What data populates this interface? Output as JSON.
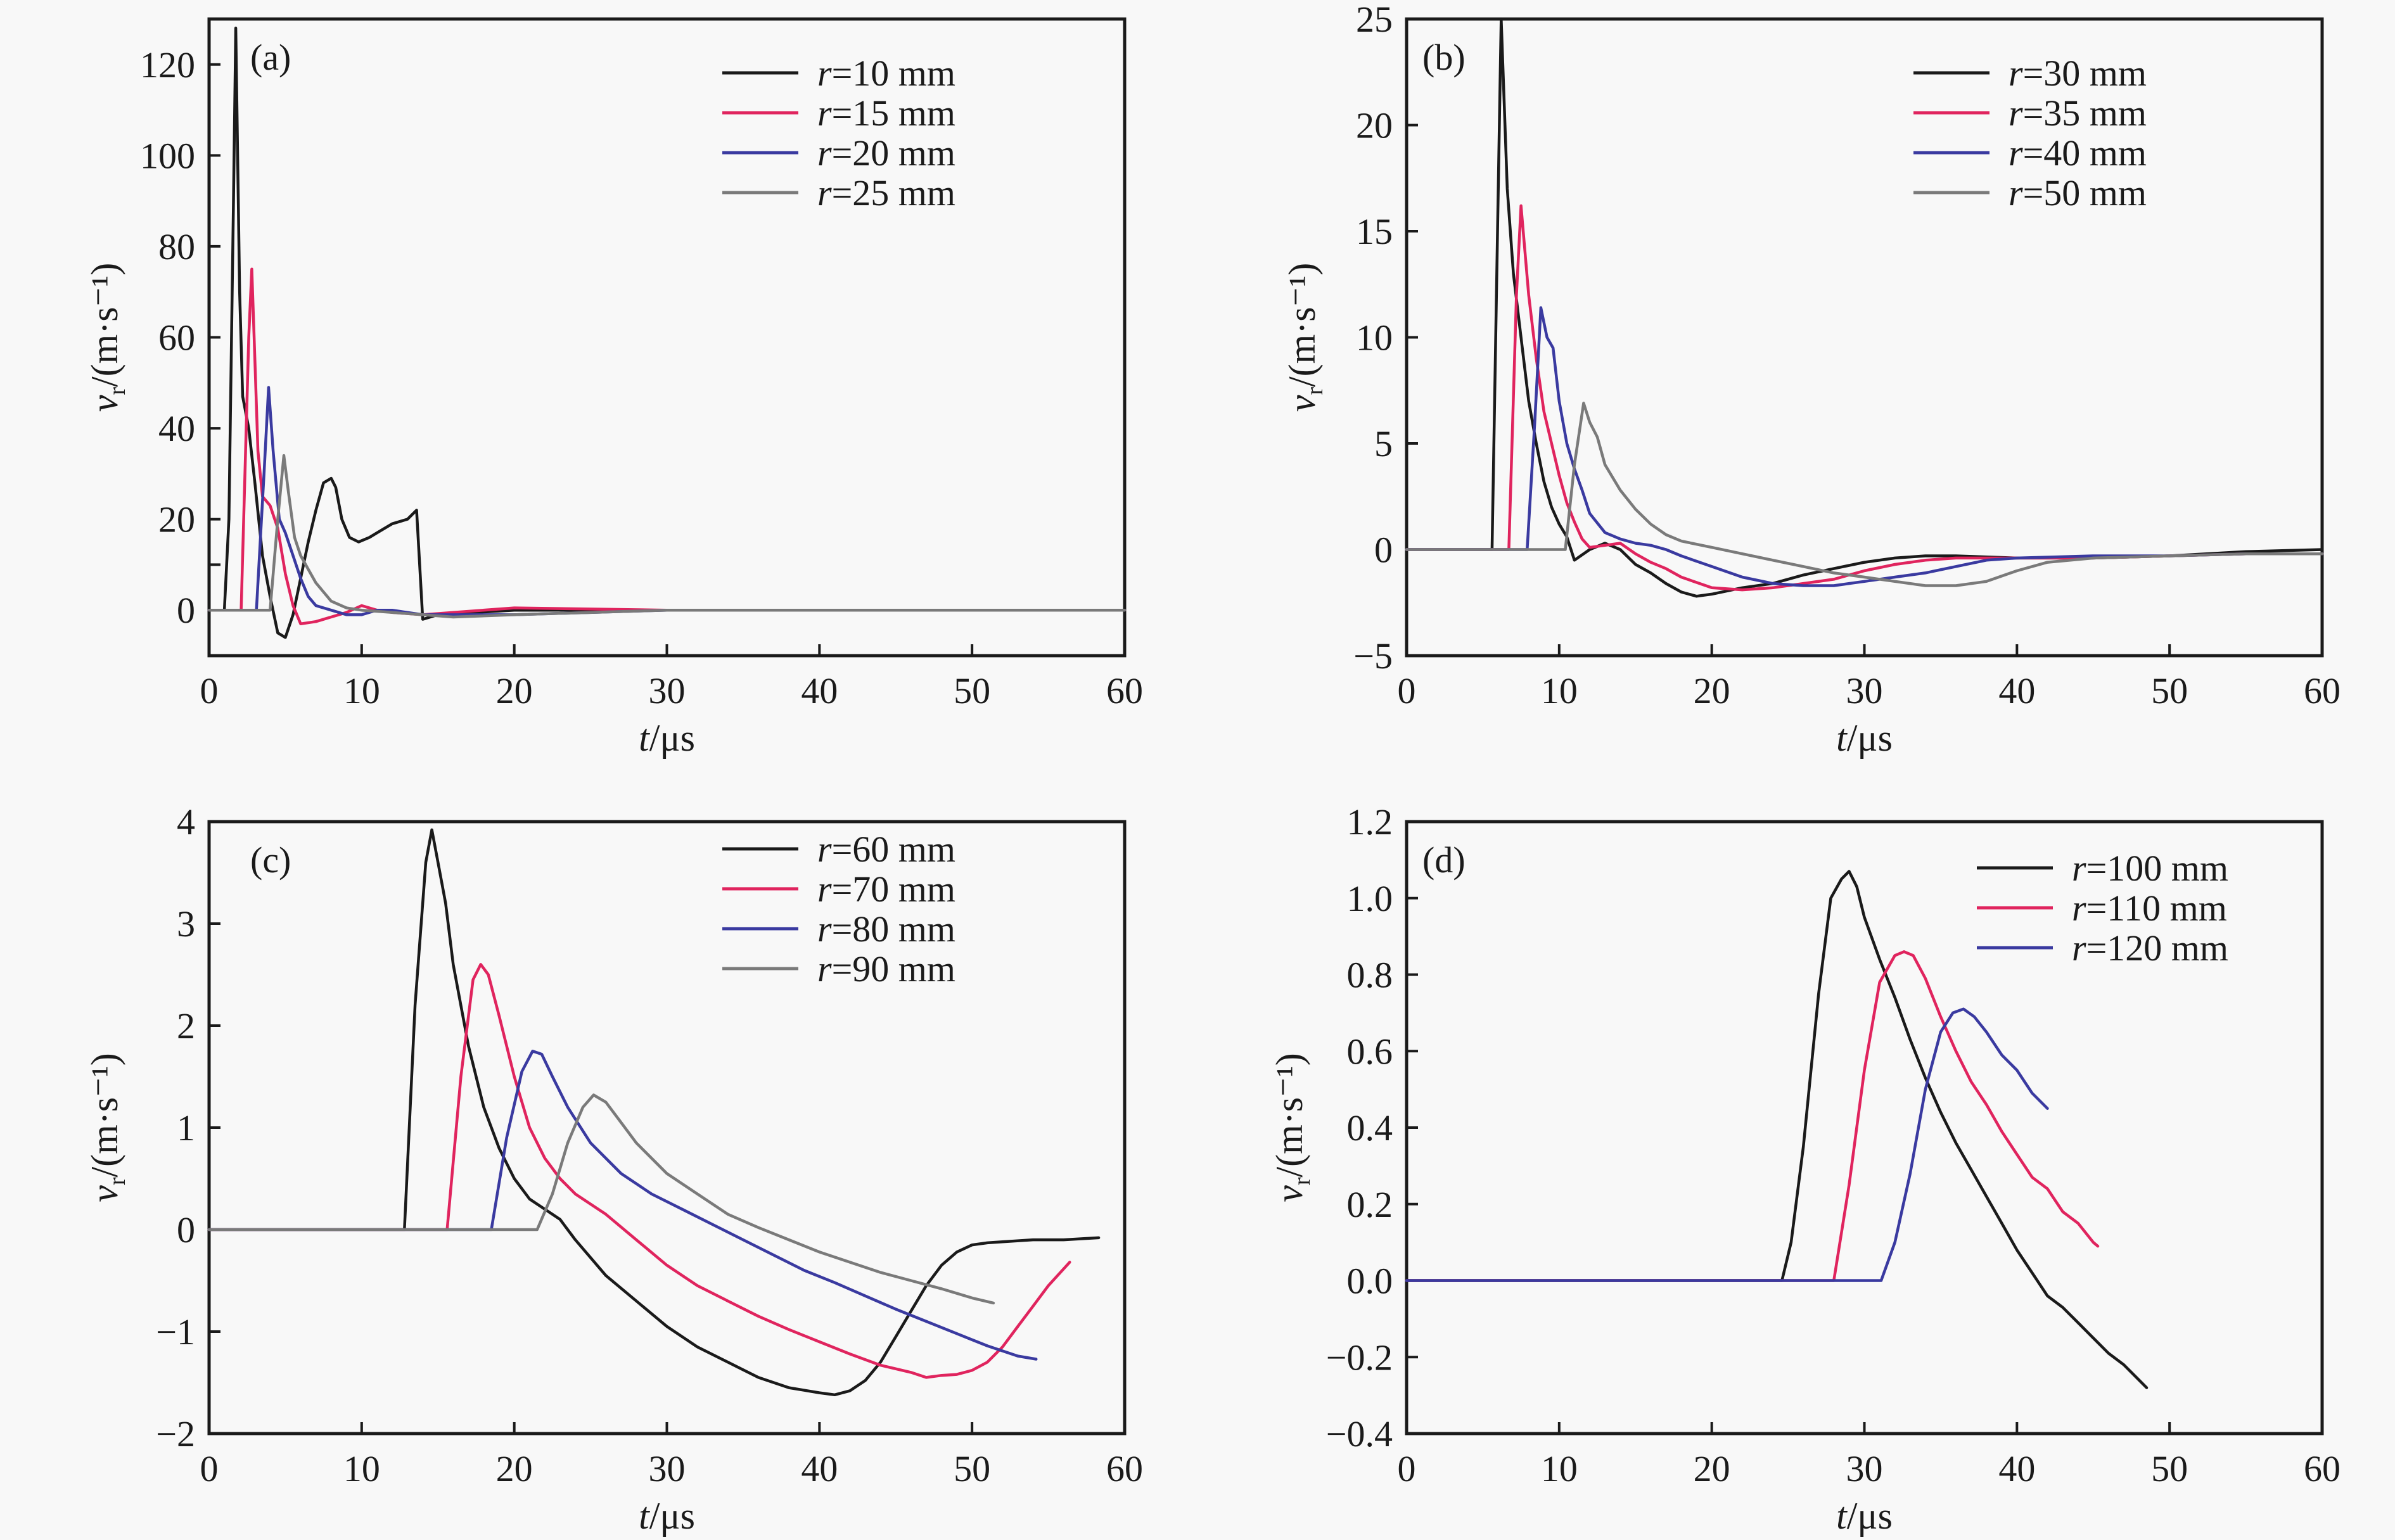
{
  "chart_data": [
    {
      "type": "line",
      "panel_label": "(a)",
      "xlabel": "t/μs",
      "ylabel": "v_r/(m·s⁻¹)",
      "xlim": [
        0,
        60
      ],
      "ylim": [
        -10,
        130
      ],
      "xticks": [
        0,
        10,
        20,
        30,
        40,
        50,
        60
      ],
      "yticks": [
        0,
        20,
        40,
        60,
        80,
        100,
        120
      ],
      "legend_position": "top-right",
      "series": [
        {
          "name": "r=10 mm",
          "r_value": "10",
          "color": "#1a1a1a",
          "x": [
            0,
            1.0,
            1.3,
            1.6,
            1.75,
            2.0,
            2.2,
            2.6,
            3.0,
            3.5,
            4.0,
            4.5,
            5.0,
            5.5,
            6.0,
            6.5,
            7.0,
            7.5,
            8.0,
            8.3,
            8.7,
            9.2,
            9.8,
            10.5,
            11.0,
            12.0,
            13.0,
            13.6,
            14.0,
            15.0,
            20,
            30,
            40,
            50,
            60
          ],
          "y": [
            0,
            0,
            20,
            90,
            128,
            70,
            47,
            40,
            28,
            12,
            3,
            -5,
            -6,
            -1,
            7,
            15,
            22,
            28,
            29,
            27,
            20,
            16,
            15,
            16,
            17,
            19,
            20,
            22,
            -2,
            -1,
            0,
            0,
            0,
            0,
            0
          ]
        },
        {
          "name": "r=15 mm",
          "r_value": "15",
          "color": "#e0245e",
          "x": [
            0,
            2.1,
            2.6,
            2.8,
            3.0,
            3.2,
            3.5,
            4.0,
            4.5,
            5.0,
            5.5,
            6.0,
            7.0,
            8.0,
            9.0,
            10,
            11,
            12,
            14,
            20,
            30,
            40,
            50,
            60
          ],
          "y": [
            0,
            0,
            60,
            75,
            55,
            35,
            25,
            23,
            18,
            8,
            1,
            -3,
            -2.5,
            -1.5,
            -0.5,
            1,
            0,
            -0.5,
            -1,
            0.5,
            0,
            0,
            0,
            0
          ]
        },
        {
          "name": "r=20 mm",
          "r_value": "20",
          "color": "#3a3aa0",
          "x": [
            0,
            3.1,
            3.6,
            3.9,
            4.2,
            4.6,
            5.0,
            5.5,
            6.0,
            6.5,
            7.0,
            8.0,
            9.0,
            10,
            11,
            12,
            14,
            20,
            30,
            40,
            50,
            60
          ],
          "y": [
            0,
            0,
            30,
            49,
            35,
            20,
            17,
            12,
            7,
            3,
            1,
            0,
            -1,
            -1,
            0,
            0,
            -1,
            -1,
            0,
            0,
            0,
            0
          ]
        },
        {
          "name": "r=25 mm",
          "r_value": "25",
          "color": "#7a7a7a",
          "x": [
            0,
            4.0,
            4.5,
            4.9,
            5.2,
            5.6,
            6.0,
            6.5,
            7.0,
            8.0,
            9.0,
            10,
            12,
            14,
            16,
            20,
            30,
            40,
            50,
            60
          ],
          "y": [
            0,
            0,
            20,
            34,
            26,
            16,
            12,
            9,
            6,
            2,
            0.5,
            0,
            -0.5,
            -1,
            -1.5,
            -1,
            0,
            0,
            0,
            0
          ]
        }
      ]
    },
    {
      "type": "line",
      "panel_label": "(b)",
      "xlabel": "t/μs",
      "ylabel": "v_r/(m·s⁻¹)",
      "xlim": [
        0,
        60
      ],
      "ylim": [
        -5,
        25
      ],
      "xticks": [
        0,
        10,
        20,
        30,
        40,
        50,
        60
      ],
      "yticks": [
        -5,
        0,
        5,
        10,
        15,
        20,
        25
      ],
      "legend_position": "top-right",
      "series": [
        {
          "name": "r=30 mm",
          "r_value": "30",
          "color": "#1a1a1a",
          "x": [
            0,
            5.6,
            6.2,
            6.6,
            7.0,
            7.5,
            8.0,
            8.5,
            9.0,
            9.5,
            10,
            10.5,
            11,
            12,
            13,
            14,
            15,
            16,
            17,
            18,
            19,
            20,
            22,
            24,
            26,
            28,
            30,
            32,
            34,
            36,
            40,
            45,
            50,
            55,
            60
          ],
          "y": [
            0,
            0,
            25,
            17,
            13,
            10,
            7,
            5,
            3.2,
            2,
            1.2,
            0.6,
            -0.5,
            0,
            0.3,
            0,
            -0.7,
            -1.1,
            -1.6,
            -2,
            -2.2,
            -2.1,
            -1.8,
            -1.6,
            -1.2,
            -0.9,
            -0.6,
            -0.4,
            -0.3,
            -0.3,
            -0.4,
            -0.4,
            -0.3,
            -0.1,
            0
          ]
        },
        {
          "name": "r=35 mm",
          "r_value": "35",
          "color": "#e0245e",
          "x": [
            0,
            6.7,
            7.2,
            7.5,
            8.0,
            8.5,
            9.0,
            9.5,
            10,
            10.5,
            11,
            11.5,
            12,
            13,
            14,
            15,
            16,
            17,
            18,
            20,
            22,
            24,
            26,
            28,
            30,
            32,
            34,
            36,
            40,
            45,
            50,
            55,
            60
          ],
          "y": [
            0,
            0,
            12,
            16.2,
            12,
            9,
            6.5,
            5,
            3.5,
            2.2,
            1.3,
            0.5,
            0.1,
            0.2,
            0.3,
            -0.2,
            -0.6,
            -0.9,
            -1.3,
            -1.8,
            -1.9,
            -1.8,
            -1.6,
            -1.4,
            -1.0,
            -0.7,
            -0.5,
            -0.4,
            -0.4,
            -0.4,
            -0.3,
            -0.2,
            -0.2
          ]
        },
        {
          "name": "r=40 mm",
          "r_value": "40",
          "color": "#3a3aa0",
          "x": [
            0,
            7.9,
            8.4,
            8.8,
            9.2,
            9.6,
            10,
            10.5,
            11,
            11.5,
            12,
            13,
            14,
            15,
            16,
            17,
            18,
            20,
            22,
            24,
            26,
            28,
            30,
            32,
            34,
            36,
            38,
            40,
            45,
            50,
            55,
            60
          ],
          "y": [
            0,
            0,
            6,
            11.4,
            10,
            9.5,
            7,
            5,
            3.8,
            2.8,
            1.7,
            0.8,
            0.5,
            0.3,
            0.2,
            0,
            -0.3,
            -0.8,
            -1.3,
            -1.6,
            -1.7,
            -1.7,
            -1.5,
            -1.3,
            -1.1,
            -0.8,
            -0.5,
            -0.4,
            -0.3,
            -0.3,
            -0.2,
            -0.2
          ]
        },
        {
          "name": "r=50 mm",
          "r_value": "50",
          "color": "#7a7a7a",
          "x": [
            0,
            10.4,
            11.0,
            11.6,
            12.0,
            12.5,
            13,
            14,
            15,
            16,
            17,
            18,
            20,
            22,
            24,
            26,
            28,
            30,
            32,
            34,
            36,
            38,
            40,
            42,
            45,
            50,
            55,
            60
          ],
          "y": [
            0,
            0,
            4,
            6.9,
            6,
            5.3,
            4,
            2.8,
            1.9,
            1.2,
            0.7,
            0.4,
            0.1,
            -0.2,
            -0.5,
            -0.8,
            -1.1,
            -1.3,
            -1.5,
            -1.7,
            -1.7,
            -1.5,
            -1.0,
            -0.6,
            -0.4,
            -0.3,
            -0.2,
            -0.2
          ]
        }
      ]
    },
    {
      "type": "line",
      "panel_label": "(c)",
      "xlabel": "t/μs",
      "ylabel": "v_r/(m·s⁻¹)",
      "xlim": [
        0,
        60
      ],
      "ylim": [
        -2,
        4
      ],
      "xticks": [
        0,
        10,
        20,
        30,
        40,
        50,
        60
      ],
      "yticks": [
        -2,
        -1,
        0,
        1,
        2,
        3,
        4
      ],
      "legend_position": "top-right",
      "series": [
        {
          "name": "r=60 mm",
          "r_value": "60",
          "color": "#1a1a1a",
          "x": [
            0,
            12.8,
            13.5,
            14.2,
            14.6,
            15.0,
            15.5,
            16,
            17,
            18,
            19,
            20,
            21,
            22,
            23,
            24,
            26,
            28,
            30,
            32,
            34,
            36,
            38,
            40,
            41,
            42,
            43,
            44,
            45,
            46,
            47,
            48,
            49,
            50,
            51,
            52,
            54,
            56,
            58.3
          ],
          "y": [
            0,
            0,
            2.2,
            3.6,
            3.92,
            3.6,
            3.2,
            2.6,
            1.8,
            1.2,
            0.8,
            0.5,
            0.3,
            0.2,
            0.1,
            -0.1,
            -0.45,
            -0.7,
            -0.95,
            -1.15,
            -1.3,
            -1.45,
            -1.55,
            -1.6,
            -1.62,
            -1.58,
            -1.48,
            -1.3,
            -1.05,
            -0.8,
            -0.55,
            -0.35,
            -0.22,
            -0.15,
            -0.13,
            -0.12,
            -0.1,
            -0.1,
            -0.08
          ]
        },
        {
          "name": "r=70 mm",
          "r_value": "70",
          "color": "#e0245e",
          "x": [
            0,
            15.6,
            16.5,
            17.3,
            17.8,
            18.3,
            19,
            20,
            21,
            22,
            23,
            24,
            26,
            28,
            30,
            32,
            34,
            36,
            38,
            40,
            42,
            44,
            46,
            47,
            48,
            49,
            50,
            51,
            52,
            53,
            54,
            55,
            56.4
          ],
          "y": [
            0,
            0,
            1.5,
            2.45,
            2.6,
            2.5,
            2.1,
            1.5,
            1.0,
            0.7,
            0.5,
            0.35,
            0.15,
            -0.1,
            -0.35,
            -0.55,
            -0.7,
            -0.85,
            -0.98,
            -1.1,
            -1.22,
            -1.33,
            -1.4,
            -1.45,
            -1.43,
            -1.42,
            -1.38,
            -1.3,
            -1.15,
            -0.95,
            -0.75,
            -0.55,
            -0.32
          ]
        },
        {
          "name": "r=80 mm",
          "r_value": "80",
          "color": "#3a3aa0",
          "x": [
            0,
            18.5,
            19.5,
            20.5,
            21.2,
            21.8,
            22.5,
            23.5,
            25,
            27,
            29,
            31,
            33,
            35,
            37,
            39,
            41,
            43,
            45,
            47,
            49,
            51,
            53,
            54.2
          ],
          "y": [
            0,
            0,
            0.9,
            1.55,
            1.75,
            1.72,
            1.5,
            1.2,
            0.85,
            0.55,
            0.35,
            0.2,
            0.05,
            -0.1,
            -0.25,
            -0.4,
            -0.52,
            -0.65,
            -0.78,
            -0.9,
            -1.02,
            -1.14,
            -1.24,
            -1.27
          ]
        },
        {
          "name": "r=90 mm",
          "r_value": "90",
          "color": "#7a7a7a",
          "x": [
            0,
            21.5,
            22.5,
            23.5,
            24.5,
            25.2,
            26,
            27,
            28,
            30,
            32,
            34,
            36,
            38,
            40,
            42,
            44,
            46,
            48,
            50,
            51.4
          ],
          "y": [
            0,
            0,
            0.35,
            0.85,
            1.2,
            1.32,
            1.25,
            1.05,
            0.85,
            0.55,
            0.35,
            0.15,
            0.02,
            -0.1,
            -0.22,
            -0.32,
            -0.42,
            -0.5,
            -0.58,
            -0.67,
            -0.72
          ]
        }
      ]
    },
    {
      "type": "line",
      "panel_label": "(d)",
      "xlabel": "t/μs",
      "ylabel": "v_r/(m·s⁻¹)",
      "xlim": [
        0,
        60
      ],
      "ylim": [
        -0.4,
        1.2
      ],
      "xticks": [
        0,
        10,
        20,
        30,
        40,
        50,
        60
      ],
      "yticks": [
        -0.4,
        -0.2,
        0.0,
        0.2,
        0.4,
        0.6,
        0.8,
        1.0,
        1.2
      ],
      "ytick_labels": [
        "−0.4",
        "−0.2",
        "0.0",
        "0.2",
        "0.4",
        "0.6",
        "0.8",
        "1.0",
        "1.2"
      ],
      "legend_position": "top-right",
      "series": [
        {
          "name": "r=100 mm",
          "r_value": "100",
          "color": "#1a1a1a",
          "x": [
            0,
            24.6,
            25.2,
            26,
            27,
            27.8,
            28.5,
            29,
            29.5,
            30,
            31,
            32,
            33,
            34,
            35,
            36,
            37,
            38,
            39,
            40,
            41,
            42,
            43,
            44,
            45,
            46,
            47,
            48,
            48.5
          ],
          "y": [
            0,
            0,
            0.1,
            0.35,
            0.75,
            1.0,
            1.05,
            1.07,
            1.03,
            0.95,
            0.84,
            0.74,
            0.63,
            0.53,
            0.44,
            0.36,
            0.29,
            0.22,
            0.15,
            0.08,
            0.02,
            -0.04,
            -0.07,
            -0.11,
            -0.15,
            -0.19,
            -0.22,
            -0.26,
            -0.28
          ]
        },
        {
          "name": "r=110 mm",
          "r_value": "110",
          "color": "#e0245e",
          "x": [
            0,
            28.0,
            29,
            30,
            31,
            32,
            32.6,
            33.2,
            34,
            35,
            36,
            37,
            38,
            39,
            40,
            41,
            42,
            43,
            44,
            45,
            45.3
          ],
          "y": [
            0,
            0,
            0.25,
            0.55,
            0.78,
            0.85,
            0.86,
            0.85,
            0.79,
            0.69,
            0.6,
            0.52,
            0.46,
            0.39,
            0.33,
            0.27,
            0.24,
            0.18,
            0.15,
            0.1,
            0.09
          ]
        },
        {
          "name": "r=120 mm",
          "r_value": "120",
          "color": "#3a3aa0",
          "x": [
            0,
            31.1,
            32,
            33,
            34,
            35,
            35.8,
            36.5,
            37.2,
            38,
            39,
            40,
            41,
            42
          ],
          "y": [
            0,
            0,
            0.1,
            0.28,
            0.5,
            0.65,
            0.7,
            0.71,
            0.69,
            0.65,
            0.59,
            0.55,
            0.49,
            0.45
          ]
        }
      ]
    }
  ]
}
